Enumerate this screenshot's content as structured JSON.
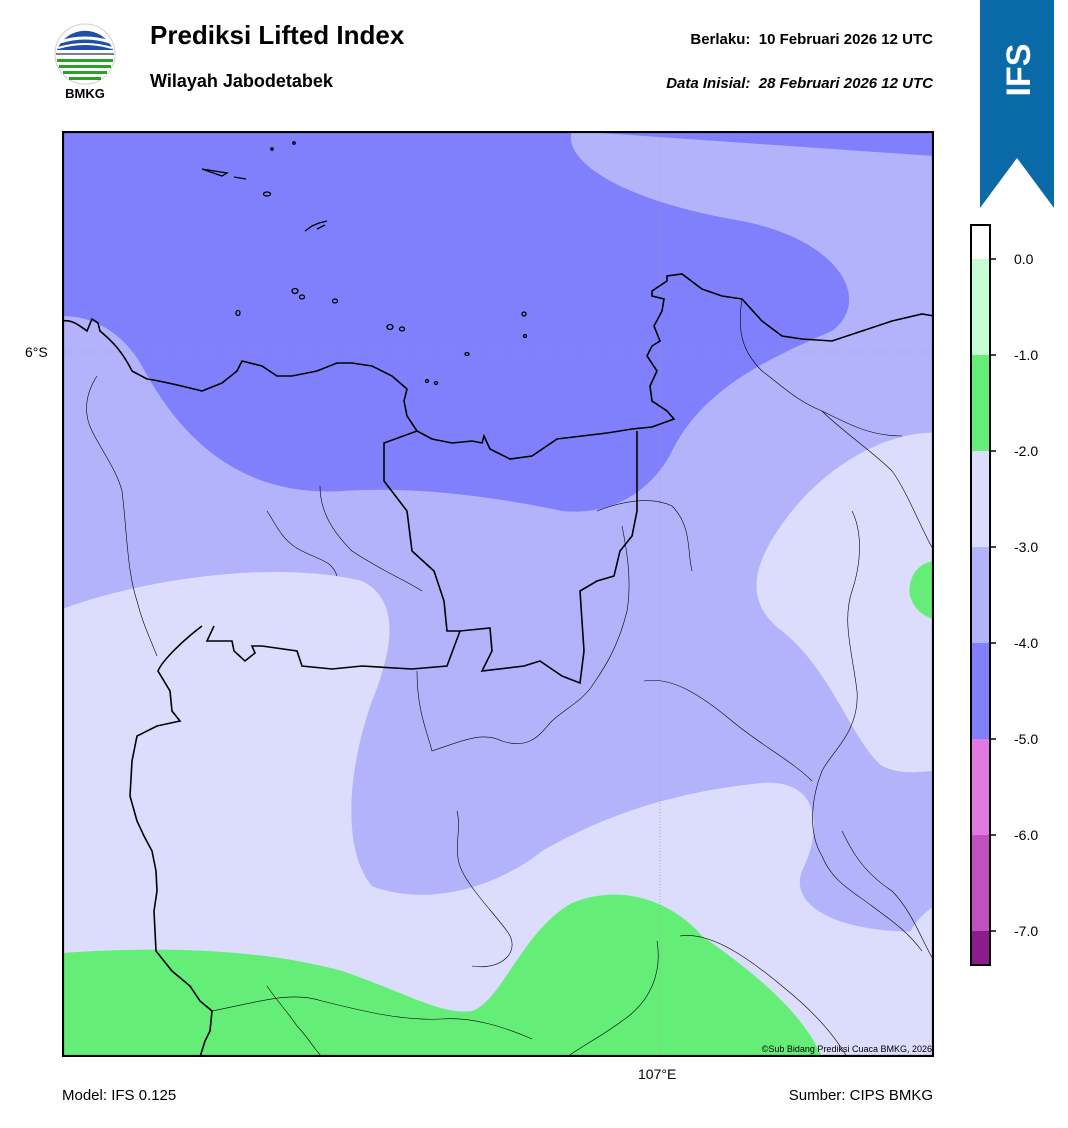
{
  "header": {
    "logo_text": "BMKG",
    "title": "Prediksi Lifted Index",
    "region": "Wilayah Jabodetabek",
    "valid_label": "Berlaku:",
    "valid_value": "10 Februari 2026 12 UTC",
    "init_label": "Data Inisial:",
    "init_value": "28 Februari 2026 12 UTC"
  },
  "ribbon": {
    "text": "IFS",
    "color": "#0a6aa8"
  },
  "map": {
    "lat_label": "6°S",
    "lon_label": "107°E",
    "credit": "©Sub Bidang Prediksi Cuaca BMKG, 2026",
    "colors": {
      "lt_minus4": "#8080fc",
      "minus4_minus3": "#b3b3fc",
      "minus3_minus2": "#dcdcfc",
      "minus2_minus1": "#64ee78",
      "minus1_0": "#c8fcd4"
    }
  },
  "colorbar": {
    "ticks": [
      "0.0",
      "-1.0",
      "-2.0",
      "-3.0",
      "-4.0",
      "-5.0",
      "-6.0",
      "-7.0"
    ],
    "bands": [
      {
        "color": "#ffffff"
      },
      {
        "color": "#c8fcd4"
      },
      {
        "color": "#64ee78"
      },
      {
        "color": "#dcdcfc"
      },
      {
        "color": "#b3b3fc"
      },
      {
        "color": "#8080fc"
      },
      {
        "color": "#e07ae0"
      },
      {
        "color": "#c050c0"
      },
      {
        "color": "#8c1c8c"
      }
    ]
  },
  "footer": {
    "model": "Model: IFS 0.125",
    "source": "Sumber: CIPS BMKG"
  }
}
